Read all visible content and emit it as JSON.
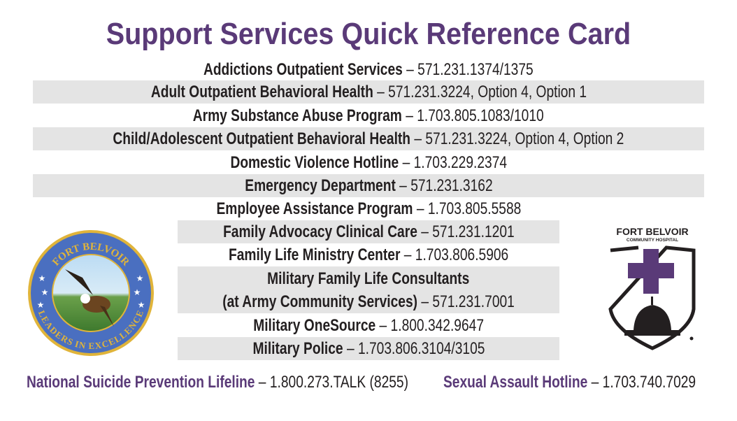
{
  "title": "Support Services Quick Reference Card",
  "services": [
    {
      "name": "Addictions Outpatient Services",
      "contact": " – 571.231.1374/1375"
    },
    {
      "name": "Adult Outpatient Behavioral Health",
      "contact": " – 571.231.3224, Option 4, Option 1"
    },
    {
      "name": "Army Substance Abuse Program",
      "contact": " – 1.703.805.1083/1010"
    },
    {
      "name": "Child/Adolescent Outpatient Behavioral Health",
      "contact": " – 571.231.3224, Option 4, Option 2"
    },
    {
      "name": "Domestic Violence Hotline",
      "contact": " – 1.703.229.2374"
    },
    {
      "name": "Emergency Department",
      "contact": " – 571.231.3162"
    },
    {
      "name": "Employee Assistance Program",
      "contact": " – 1.703.805.5588"
    },
    {
      "name": "Family Advocacy Clinical Care",
      "contact": " – 571.231.1201"
    },
    {
      "name": "Family Life Ministry Center",
      "contact": " – 1.703.806.5906"
    },
    {
      "name": "Military Family Life Consultants",
      "name2": "(at Army Community Services)",
      "contact": " – 571.231.7001"
    },
    {
      "name": "Military OneSource",
      "contact": " – 1.800.342.9647"
    },
    {
      "name": "Military Police",
      "contact": " – 1.703.806.3104/3105"
    }
  ],
  "footer": [
    {
      "name": "National Suicide Prevention Lifeline",
      "contact": " – 1.800.273.TALK (8255)"
    },
    {
      "name": "Sexual Assault Hotline",
      "contact": " – 1.703.740.7029"
    }
  ],
  "seal": {
    "top_text": "FORT BELVOIR",
    "bottom_text": "LEADERS IN EXCELLENCE"
  },
  "hospital_logo": {
    "line1": "FORT BELVOIR",
    "line2": "COMMUNITY HOSPITAL"
  },
  "colors": {
    "accent": "#5a3a78",
    "band": "#e4e4e4",
    "seal_blue": "#4a6fc0",
    "seal_gold": "#e0b43a"
  }
}
